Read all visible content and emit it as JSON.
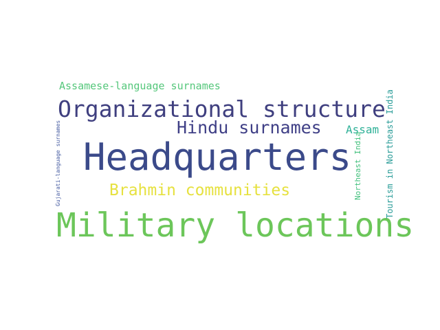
{
  "words": [
    {
      "text": "Headquarters",
      "color": "#3b4a8a"
    },
    {
      "text": "Military locations",
      "color": "#6cc65a"
    },
    {
      "text": "Organizational structure",
      "color": "#3f3f7f"
    },
    {
      "text": "Hindu surnames",
      "color": "#3f3f86"
    },
    {
      "text": "Brahmin communities",
      "color": "#e6e13f"
    },
    {
      "text": "Assamese-language surnames",
      "color": "#55c77b"
    },
    {
      "text": "Assam",
      "color": "#2fb198"
    },
    {
      "text": "Northeast India",
      "color": "#3fbf7a"
    },
    {
      "text": "Tourism in Northeast India",
      "color": "#2a9c98"
    },
    {
      "text": "Gujarati-language surnames",
      "color": "#445aa0"
    }
  ]
}
